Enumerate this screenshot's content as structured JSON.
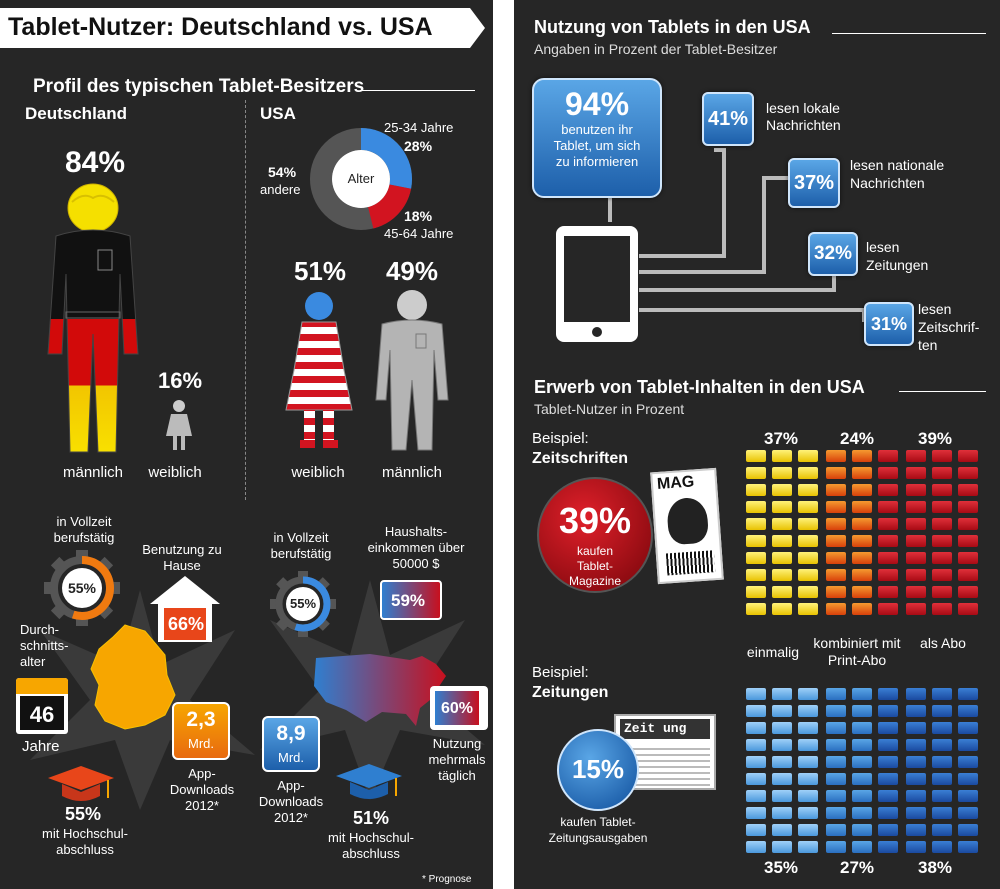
{
  "colors": {
    "panel_bg": "#262626",
    "accent_blue": "#2f7fd0",
    "accent_red": "#c8101e",
    "accent_yellow": "#f0d000",
    "accent_orange": "#f07a10"
  },
  "left": {
    "title": "Tablet-Nutzer: Deutschland vs. USA",
    "profile_heading": "Profil des typischen Tablet-Besitzers",
    "germany": {
      "label": "Deutschland",
      "male_pct": "84%",
      "male_label": "männlich",
      "female_pct": "16%",
      "female_label": "weiblich",
      "fulltime_label": "in Vollzeit berufstätig",
      "fulltime_pct": "55%",
      "home_label": "Benutzung zu Hause",
      "home_pct": "66%",
      "age_label": "Durch-schnitts-alter",
      "age_value": "46",
      "age_unit": "Jahre",
      "downloads_value": "2,3",
      "downloads_unit": "Mrd.",
      "downloads_label": "App-Downloads 2012*",
      "degree_pct": "55%",
      "degree_label": "mit Hochschul-abschluss"
    },
    "usa": {
      "label": "USA",
      "age_chart": {
        "center_label": "Alter",
        "seg1_range": "25-34 Jahre",
        "seg1_pct": "28%",
        "seg2_pct": "18%",
        "seg2_range": "45-64 Jahre",
        "other_pct": "54%",
        "other_label": "andere"
      },
      "female_pct": "51%",
      "female_label": "weiblich",
      "male_pct": "49%",
      "male_label": "männlich",
      "fulltime_label": "in Vollzeit berufstätig",
      "fulltime_pct": "55%",
      "income_label": "Haushalts-einkommen über 50000 $",
      "income_pct": "59%",
      "usage_pct": "60%",
      "usage_label": "Nutzung mehrmals täglich",
      "downloads_value": "8,9",
      "downloads_unit": "Mrd.",
      "downloads_label": "App-Downloads 2012*",
      "degree_pct": "51%",
      "degree_label": "mit Hochschul-abschluss"
    },
    "footnote": "* Prognose"
  },
  "right": {
    "usage": {
      "title": "Nutzung von Tablets in den USA",
      "subtitle": "Angaben in Prozent der Tablet-Besitzer",
      "main_pct": "94%",
      "main_label": "benutzen ihr Tablet, um sich zu informieren",
      "items": [
        {
          "pct": "41%",
          "label": "lesen lokale Nachrichten"
        },
        {
          "pct": "37%",
          "label": "lesen nationale Nachrichten"
        },
        {
          "pct": "32%",
          "label": "lesen Zeitungen"
        },
        {
          "pct": "31%",
          "label": "lesen Zeitschrif-ten"
        }
      ]
    },
    "content": {
      "title": "Erwerb von Tablet-Inhalten in den USA",
      "subtitle": "Tablet-Nutzer in Prozent",
      "magazines": {
        "example_label": "Beispiel:",
        "name": "Zeitschriften",
        "pct": "39%",
        "label": "kaufen Tablet-Magazine",
        "icon_text": "MAG",
        "split": [
          "37%",
          "24%",
          "39%"
        ]
      },
      "legend": [
        "einmalig",
        "kombiniert mit Print-Abo",
        "als Abo"
      ],
      "newspapers": {
        "example_label": "Beispiel:",
        "name": "Zeitungen",
        "pct": "15%",
        "label": "kaufen Tablet-Zeitungsausgaben",
        "icon_text": "Zeit ung",
        "split": [
          "35%",
          "27%",
          "38%"
        ]
      }
    }
  }
}
